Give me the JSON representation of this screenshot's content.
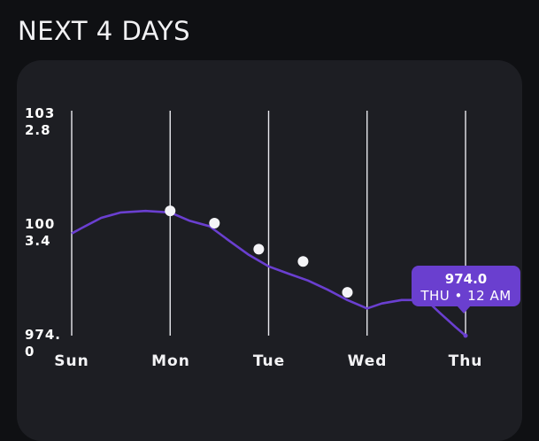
{
  "heading": "NEXT 4 DAYS",
  "tooltip": {
    "value": "974.0",
    "time": "THU • 12 AM"
  },
  "chart_data": {
    "type": "line",
    "ylim": [
      974.0,
      1032.8
    ],
    "y_ticks": [
      "1032.8",
      "1003.4",
      "974.0"
    ],
    "categories": [
      "Sun",
      "Mon",
      "Tue",
      "Wed",
      "Thu"
    ],
    "x_range": [
      0,
      4
    ],
    "series": [
      {
        "color": "#6a3fd0",
        "points": [
          [
            0.0,
            1000.7
          ],
          [
            0.1,
            1002.1
          ],
          [
            0.3,
            1004.8
          ],
          [
            0.5,
            1006.2
          ],
          [
            0.75,
            1006.6
          ],
          [
            1.0,
            1006.2
          ],
          [
            1.2,
            1004.0
          ],
          [
            1.4,
            1002.6
          ],
          [
            1.6,
            998.8
          ],
          [
            1.8,
            995.1
          ],
          [
            2.0,
            992.1
          ],
          [
            2.2,
            990.2
          ],
          [
            2.4,
            988.4
          ],
          [
            2.6,
            986.0
          ],
          [
            2.8,
            983.3
          ],
          [
            3.0,
            981.1
          ],
          [
            3.15,
            982.4
          ],
          [
            3.35,
            983.3
          ],
          [
            3.6,
            983.3
          ],
          [
            3.75,
            979.7
          ],
          [
            3.9,
            976.2
          ],
          [
            4.0,
            974.0
          ]
        ]
      }
    ],
    "markers": [
      [
        1.0,
        1006.6
      ],
      [
        1.45,
        1003.4
      ],
      [
        1.9,
        996.6
      ],
      [
        2.35,
        993.4
      ],
      [
        2.8,
        985.3
      ]
    ],
    "highlight": [
      4.0,
      974.0
    ],
    "grid": "vertical"
  }
}
